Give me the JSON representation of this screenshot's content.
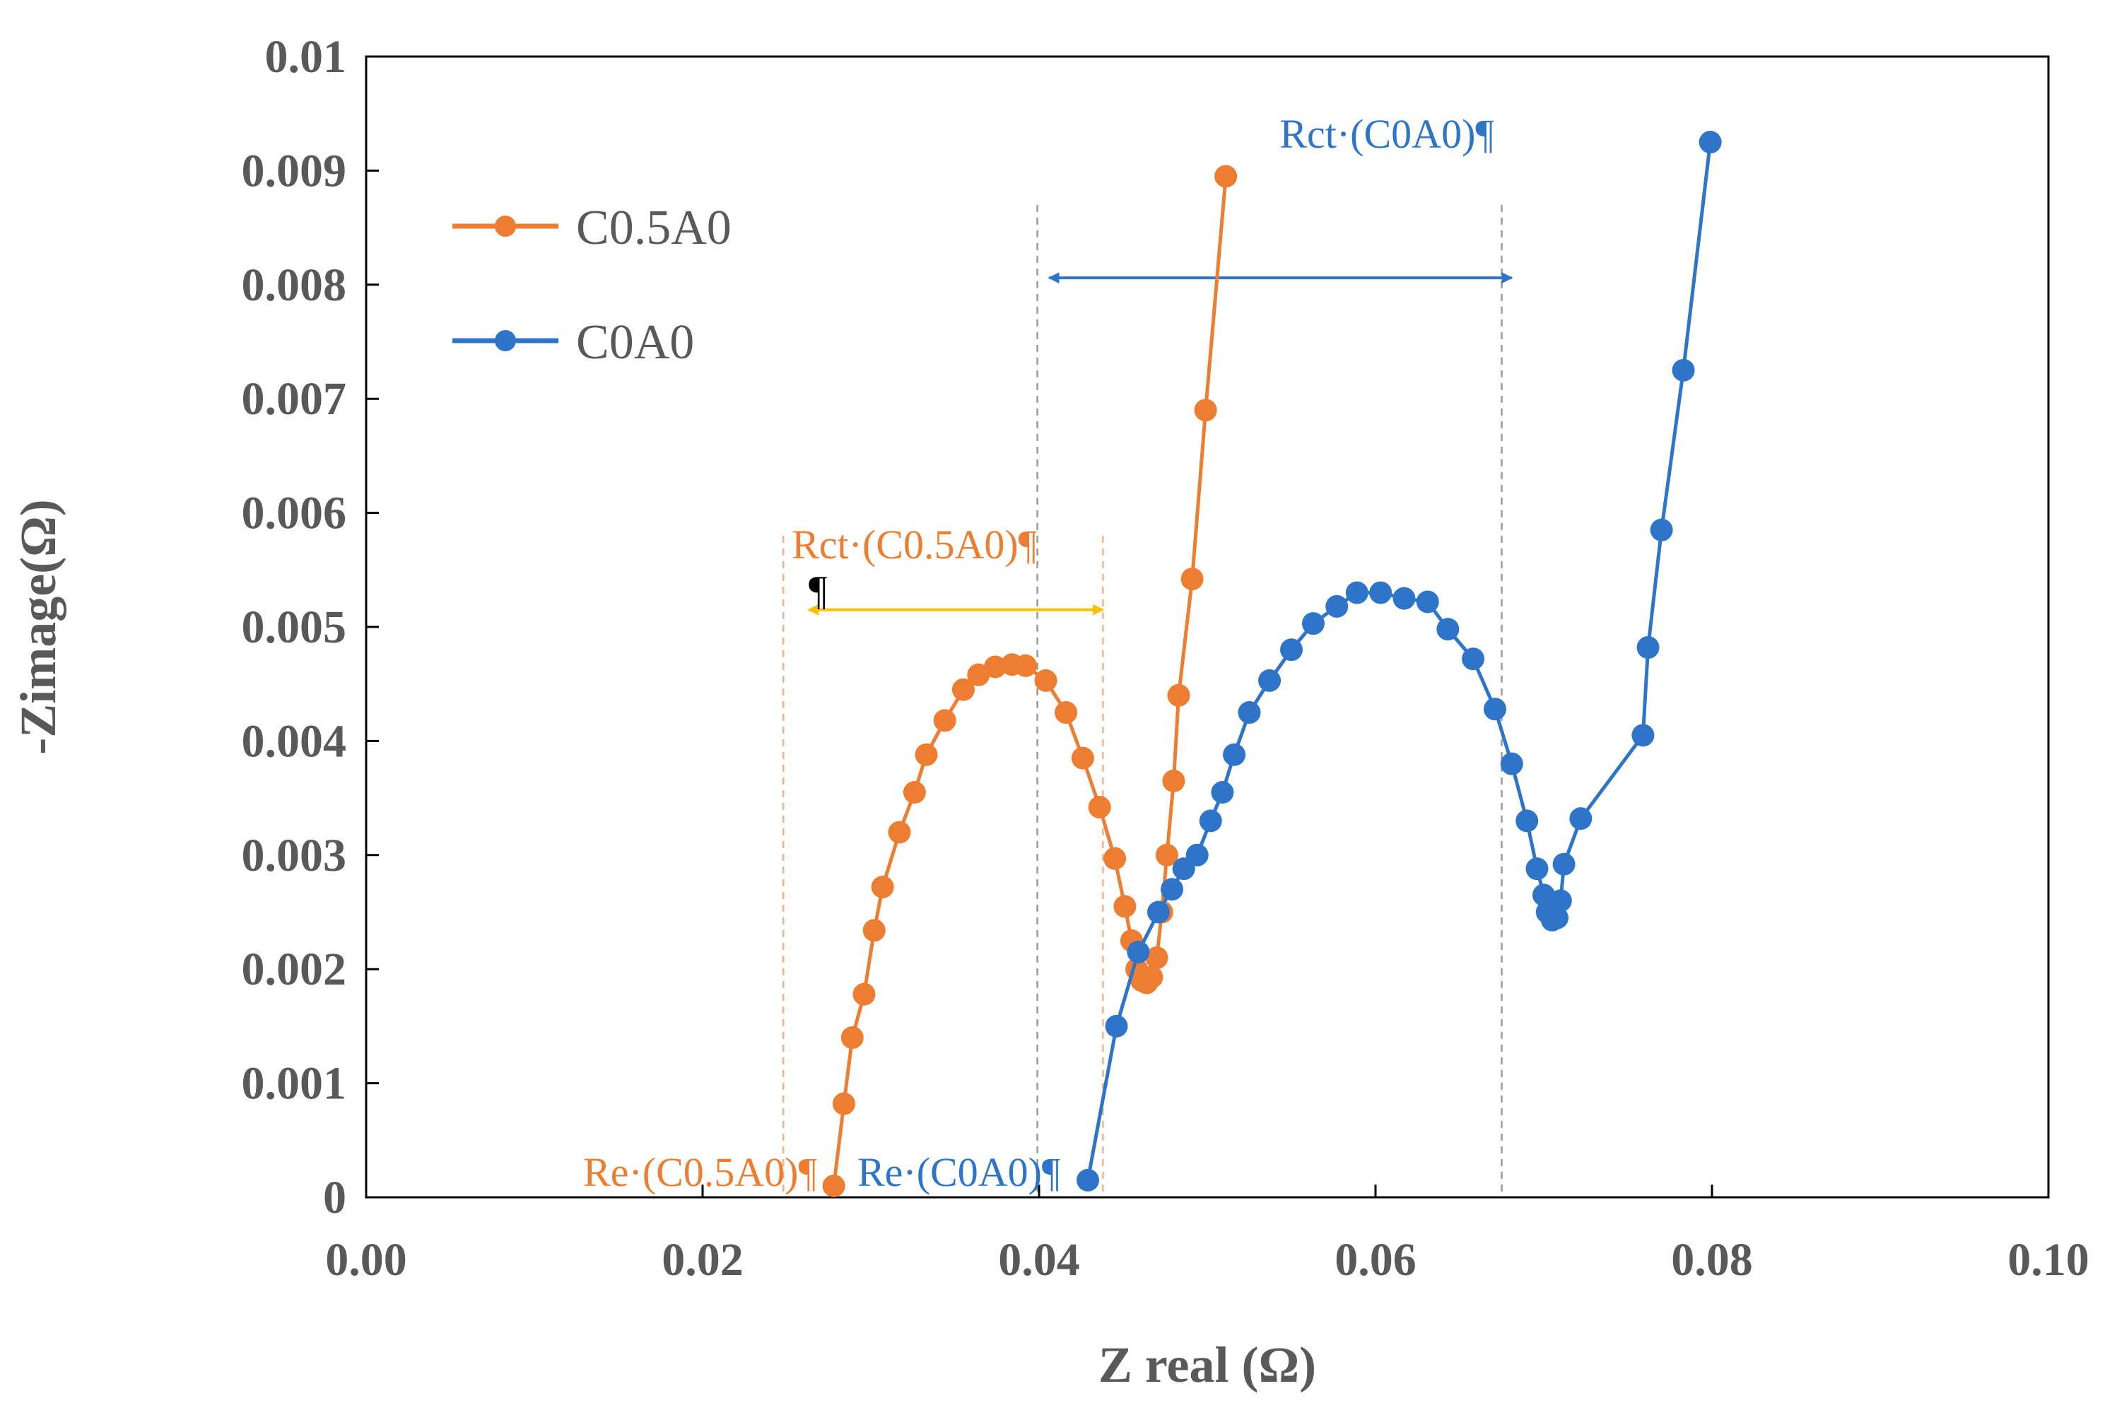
{
  "chart_data": {
    "type": "scatter",
    "xlabel": "Z real (Ω)",
    "ylabel": "-Zimage(Ω)",
    "xlim": [
      0,
      0.1
    ],
    "ylim": [
      0,
      0.01
    ],
    "x_ticks": [
      "0.00",
      "0.02",
      "0.04",
      "0.06",
      "0.08",
      "0.10"
    ],
    "y_ticks": [
      "0",
      "0.001",
      "0.002",
      "0.003",
      "0.004",
      "0.005",
      "0.006",
      "0.007",
      "0.008",
      "0.009",
      "0.01"
    ],
    "grid": false,
    "legend_position": "top-left",
    "series": [
      {
        "name": "C0.5A0",
        "color": "#ED7D31",
        "points": [
          [
            0.0278,
            0.0001
          ],
          [
            0.0284,
            0.00082
          ],
          [
            0.0289,
            0.0014
          ],
          [
            0.0296,
            0.00178
          ],
          [
            0.0302,
            0.00234
          ],
          [
            0.0307,
            0.00272
          ],
          [
            0.0317,
            0.0032
          ],
          [
            0.0326,
            0.00355
          ],
          [
            0.0333,
            0.00388
          ],
          [
            0.0344,
            0.00418
          ],
          [
            0.0355,
            0.00445
          ],
          [
            0.0364,
            0.00458
          ],
          [
            0.0374,
            0.00465
          ],
          [
            0.0384,
            0.00467
          ],
          [
            0.0392,
            0.00466
          ],
          [
            0.0404,
            0.00453
          ],
          [
            0.0416,
            0.00425
          ],
          [
            0.0426,
            0.00385
          ],
          [
            0.0436,
            0.00342
          ],
          [
            0.0445,
            0.00297
          ],
          [
            0.0451,
            0.00255
          ],
          [
            0.0455,
            0.00225
          ],
          [
            0.0458,
            0.002
          ],
          [
            0.0461,
            0.0019
          ],
          [
            0.0464,
            0.00188
          ],
          [
            0.0467,
            0.00193
          ],
          [
            0.047,
            0.0021
          ],
          [
            0.0473,
            0.0025
          ],
          [
            0.0476,
            0.003
          ],
          [
            0.048,
            0.00365
          ],
          [
            0.0483,
            0.0044
          ],
          [
            0.0491,
            0.00542
          ],
          [
            0.0499,
            0.0069
          ],
          [
            0.0511,
            0.00895
          ]
        ]
      },
      {
        "name": "C0A0",
        "color": "#2E75C9",
        "points": [
          [
            0.0429,
            0.00015
          ],
          [
            0.0446,
            0.0015
          ],
          [
            0.0459,
            0.00215
          ],
          [
            0.0471,
            0.0025
          ],
          [
            0.0479,
            0.0027
          ],
          [
            0.0486,
            0.00288
          ],
          [
            0.0494,
            0.003
          ],
          [
            0.0502,
            0.0033
          ],
          [
            0.0509,
            0.00355
          ],
          [
            0.0516,
            0.00388
          ],
          [
            0.0525,
            0.00425
          ],
          [
            0.0537,
            0.00453
          ],
          [
            0.055,
            0.0048
          ],
          [
            0.0563,
            0.00503
          ],
          [
            0.0577,
            0.00518
          ],
          [
            0.0589,
            0.0053
          ],
          [
            0.0603,
            0.0053
          ],
          [
            0.0617,
            0.00525
          ],
          [
            0.0631,
            0.00522
          ],
          [
            0.0643,
            0.00498
          ],
          [
            0.0658,
            0.00472
          ],
          [
            0.0671,
            0.00428
          ],
          [
            0.0681,
            0.0038
          ],
          [
            0.069,
            0.0033
          ],
          [
            0.0696,
            0.00288
          ],
          [
            0.07,
            0.00265
          ],
          [
            0.0702,
            0.0025
          ],
          [
            0.0705,
            0.00243
          ],
          [
            0.0708,
            0.00245
          ],
          [
            0.071,
            0.0026
          ],
          [
            0.0712,
            0.00292
          ],
          [
            0.0722,
            0.00332
          ],
          [
            0.0759,
            0.00405
          ],
          [
            0.0762,
            0.00482
          ],
          [
            0.077,
            0.00585
          ],
          [
            0.0783,
            0.00725
          ],
          [
            0.0799,
            0.00925
          ]
        ]
      }
    ],
    "annotations": {
      "rct_c0a0": {
        "label": "Rct·(C0A0)¶",
        "x": 0.0543,
        "y": 0.0092,
        "color": "#2E75C9"
      },
      "rct_c05a0": {
        "label": "Rct·(C0.5A0)¶",
        "x": 0.0253,
        "y": 0.0056,
        "color": "#ED7D31"
      },
      "re_c05a0": {
        "label": "Re·(C0.5A0)¶",
        "x": 0.0129,
        "y": 0.0001,
        "color": "#ED7D31"
      },
      "re_c0a0": {
        "label": "Re·(C0A0)¶",
        "x": 0.0292,
        "y": 0.0001,
        "color": "#2E75C9"
      },
      "pilcrow": {
        "label": "¶",
        "x": 0.0263,
        "y": 0.0052,
        "color": "#000000"
      }
    },
    "guides": {
      "c0a0_vlines": [
        0.0399,
        0.0675
      ],
      "c05a0_vlines": [
        0.0248,
        0.0438
      ],
      "c0a0_arrow": {
        "x1": 0.0406,
        "x2": 0.0681,
        "y": 0.00806,
        "color": "#2E75C9"
      },
      "c05a0_arrow": {
        "x1": 0.0263,
        "x2": 0.0438,
        "y": 0.00515,
        "color": "#FFC000"
      }
    }
  }
}
